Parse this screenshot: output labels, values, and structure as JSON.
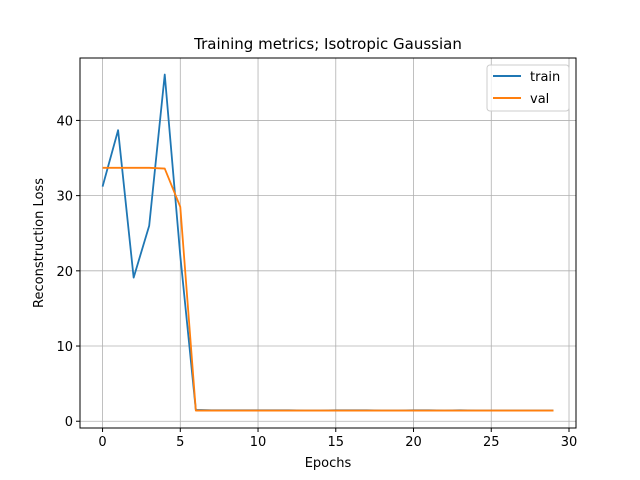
{
  "chart_data": {
    "type": "line",
    "title": "Training metrics; Isotropic Gaussian",
    "xlabel": "Epochs",
    "ylabel": "Reconstruction Loss",
    "xlim": [
      -1.45,
      30.45
    ],
    "ylim": [
      -0.9,
      48.3
    ],
    "xticks": [
      0,
      5,
      10,
      15,
      20,
      25,
      30
    ],
    "yticks": [
      0,
      10,
      20,
      30,
      40
    ],
    "grid": true,
    "legend_position": "top-right",
    "x": [
      0,
      1,
      2,
      3,
      4,
      5,
      6,
      7,
      8,
      9,
      10,
      11,
      12,
      13,
      14,
      15,
      16,
      17,
      18,
      19,
      20,
      21,
      22,
      23,
      24,
      25,
      26,
      27,
      28,
      29
    ],
    "series": [
      {
        "name": "train",
        "color": "#1f77b4",
        "values": [
          31.2,
          38.7,
          19.1,
          26.0,
          46.1,
          22.0,
          1.5,
          1.45,
          1.45,
          1.45,
          1.45,
          1.45,
          1.45,
          1.42,
          1.42,
          1.45,
          1.45,
          1.45,
          1.42,
          1.42,
          1.45,
          1.45,
          1.42,
          1.45,
          1.42,
          1.42,
          1.42,
          1.42,
          1.42,
          1.42
        ]
      },
      {
        "name": "val",
        "color": "#ff7f0e",
        "values": [
          33.7,
          33.7,
          33.7,
          33.7,
          33.6,
          28.5,
          1.42,
          1.42,
          1.42,
          1.42,
          1.42,
          1.42,
          1.42,
          1.42,
          1.42,
          1.42,
          1.42,
          1.42,
          1.42,
          1.42,
          1.42,
          1.42,
          1.42,
          1.42,
          1.42,
          1.42,
          1.42,
          1.42,
          1.42,
          1.42
        ]
      }
    ]
  }
}
